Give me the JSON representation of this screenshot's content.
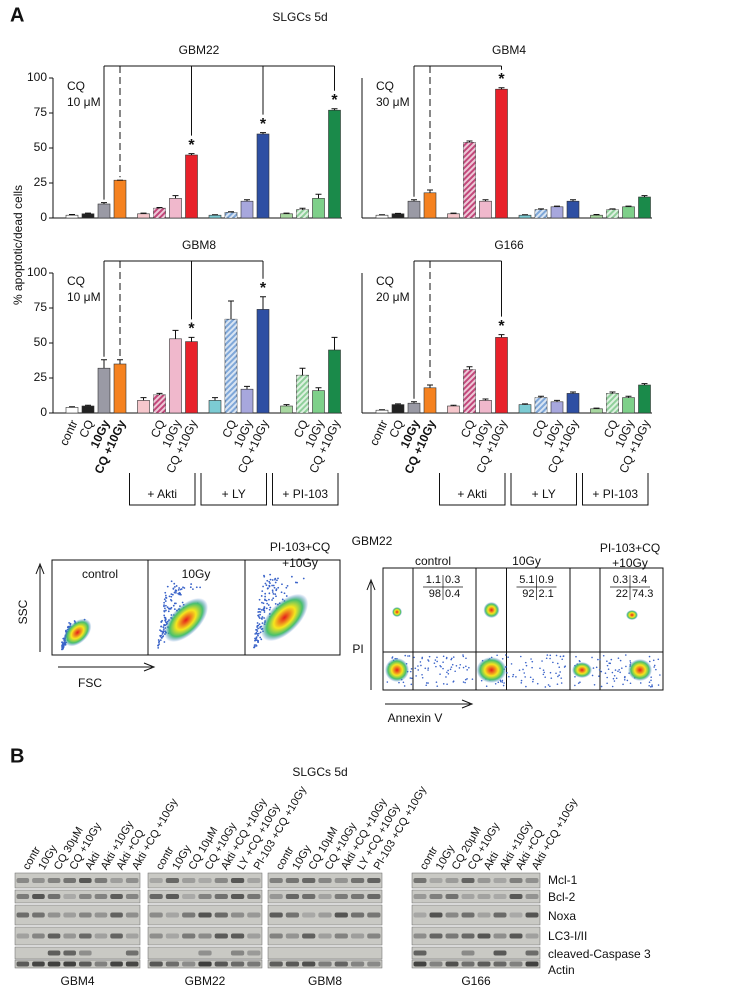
{
  "panel_a": {
    "label": "A",
    "title": "SLGCs 5d",
    "y_label": "% apoptotic/dead cells"
  },
  "chart_data": [
    {
      "type": "bar",
      "title": "GBM22",
      "note": [
        "CQ",
        "10 μM"
      ],
      "ylim": [
        0,
        100
      ],
      "yticks": [
        0,
        25,
        50,
        75,
        100
      ],
      "values": [
        2,
        3,
        10,
        27,
        3,
        7,
        14,
        45,
        2,
        4,
        12,
        60,
        3,
        6,
        14,
        77
      ],
      "errors": [
        0.5,
        0.5,
        1,
        0,
        0.5,
        0.5,
        2,
        1,
        0.3,
        0.5,
        1,
        1,
        0.5,
        1,
        3,
        1
      ],
      "colors": [
        "#ffffff",
        "#222222",
        "#9a9aa5",
        "#f58220",
        "#f6c7cc",
        "#c2477a",
        "#f0b8cc",
        "#e8212a",
        "#7ccbd3",
        "#7fa7d8",
        "#a7a7dd",
        "#2e4fa3",
        "#a8d8a0",
        "#8fcf9a",
        "#7ed08a",
        "#1a8a4a"
      ],
      "annotations": [
        null,
        null,
        null,
        null,
        null,
        null,
        null,
        "*",
        null,
        null,
        null,
        "*",
        null,
        null,
        null,
        "*"
      ]
    },
    {
      "type": "bar",
      "title": "GBM4",
      "note": [
        "CQ",
        "30 μM"
      ],
      "ylim": [
        0,
        100
      ],
      "values": [
        2,
        3,
        12,
        18,
        3,
        54,
        12,
        92,
        2,
        6,
        8,
        12,
        2,
        6,
        8,
        15
      ],
      "errors": [
        0.3,
        0.3,
        1,
        2,
        0.5,
        1,
        1,
        1,
        0.3,
        0.5,
        0.5,
        1,
        0.5,
        0.5,
        0.5,
        1
      ],
      "colors": [
        "#ffffff",
        "#222222",
        "#9a9aa5",
        "#f58220",
        "#f6c7cc",
        "#c2477a",
        "#f0b8cc",
        "#e8212a",
        "#7ccbd3",
        "#7fa7d8",
        "#a7a7dd",
        "#2e4fa3",
        "#a8d8a0",
        "#8fcf9a",
        "#7ed08a",
        "#1a8a4a"
      ],
      "annotations": [
        null,
        null,
        null,
        null,
        null,
        null,
        null,
        "*",
        null,
        null,
        null,
        null,
        null,
        null,
        null,
        null
      ]
    },
    {
      "type": "bar",
      "title": "GBM8",
      "note": [
        "CQ",
        "10 μM"
      ],
      "ylim": [
        0,
        100
      ],
      "yticks": [
        0,
        25,
        50,
        75,
        100
      ],
      "values": [
        4,
        5,
        32,
        35,
        9,
        13,
        53,
        51,
        9,
        67,
        17,
        74,
        5,
        27,
        16,
        45
      ],
      "errors": [
        0.5,
        0.5,
        6,
        3,
        2,
        1,
        6,
        3,
        2,
        13,
        2,
        9,
        1,
        5,
        2,
        9
      ],
      "colors": [
        "#ffffff",
        "#222222",
        "#9a9aa5",
        "#f58220",
        "#f6c7cc",
        "#c2477a",
        "#f0b8cc",
        "#e8212a",
        "#7ccbd3",
        "#7fa7d8",
        "#a7a7dd",
        "#2e4fa3",
        "#a8d8a0",
        "#8fcf9a",
        "#7ed08a",
        "#1a8a4a"
      ],
      "annotations": [
        null,
        null,
        null,
        null,
        null,
        null,
        null,
        "*",
        null,
        null,
        null,
        "*",
        null,
        null,
        null,
        null
      ],
      "categories": [
        "contr",
        "CQ",
        "10Gy",
        "CQ +10Gy",
        null,
        "CQ",
        "10Gy",
        "CQ +10Gy",
        null,
        "CQ",
        "10Gy",
        "CQ +10Gy",
        null,
        "CQ",
        "10Gy",
        "CQ +10Gy"
      ],
      "groups": [
        "+ Akti",
        "+ LY",
        "+ PI-103"
      ]
    },
    {
      "type": "bar",
      "title": "G166",
      "note": [
        "CQ",
        "20 μM"
      ],
      "ylim": [
        0,
        100
      ],
      "values": [
        2,
        6,
        7,
        18,
        5,
        31,
        9,
        54,
        6,
        11,
        8,
        14,
        3,
        14,
        11,
        20
      ],
      "errors": [
        0.3,
        0.5,
        1,
        2,
        0.5,
        2,
        1,
        2,
        0.5,
        1,
        1,
        1,
        0.5,
        1,
        1,
        1
      ],
      "colors": [
        "#ffffff",
        "#222222",
        "#9a9aa5",
        "#f58220",
        "#f6c7cc",
        "#c2477a",
        "#f0b8cc",
        "#e8212a",
        "#7ccbd3",
        "#7fa7d8",
        "#a7a7dd",
        "#2e4fa3",
        "#a8d8a0",
        "#8fcf9a",
        "#7ed08a",
        "#1a8a4a"
      ],
      "annotations": [
        null,
        null,
        null,
        null,
        null,
        null,
        null,
        "*",
        null,
        null,
        null,
        null,
        null,
        null,
        null,
        null
      ],
      "categories": [
        "contr",
        "CQ",
        "10Gy",
        "CQ +10Gy",
        null,
        "CQ",
        "10Gy",
        "CQ +10Gy",
        null,
        "CQ",
        "10Gy",
        "CQ +10Gy",
        null,
        "CQ",
        "10Gy",
        "CQ +10Gy"
      ],
      "groups": [
        "+ Akti",
        "+ LY",
        "+ PI-103"
      ]
    }
  ],
  "flow": {
    "title": "GBM22",
    "scatter": {
      "y_label": "SSC",
      "x_label": "FSC",
      "panels": [
        [
          "control"
        ],
        [
          "10Gy"
        ],
        [
          "PI-103+CQ",
          "+10Gy"
        ]
      ]
    },
    "annexin": {
      "y_label": "PI",
      "x_label": "Annexin V",
      "panels": [
        {
          "label": [
            "control"
          ],
          "quadrants": [
            "1.1",
            "0.3",
            "98",
            "0.4"
          ]
        },
        {
          "label": [
            "10Gy"
          ],
          "quadrants": [
            "5.1",
            "0.9",
            "92",
            "2.1"
          ]
        },
        {
          "label": [
            "PI-103+CQ",
            "+10Gy"
          ],
          "quadrants": [
            "0.3",
            "3.4",
            "22",
            "74.3"
          ]
        }
      ]
    }
  },
  "western": {
    "label": "B",
    "title": "SLGCs 5d",
    "blots": [
      {
        "name": "GBM4",
        "lanes": [
          "contr",
          "10Gy",
          "CQ 30μM",
          "CQ +10Gy",
          "Akti",
          "Akti +10Gy",
          "Akti +CQ",
          "Akti +CQ +10Gy"
        ]
      },
      {
        "name": "GBM22",
        "lanes": [
          "contr",
          "10Gy",
          "CQ 10μM",
          "CQ +10Gy",
          "Akti +CQ +10Gy",
          "LY +CQ +10Gy",
          "PI-103 +CQ +10Gy"
        ]
      },
      {
        "name": "GBM8",
        "lanes": [
          "contr",
          "10Gy",
          "CQ 10μM",
          "CQ +10Gy",
          "Akti +CQ +10Gy",
          "LY +CQ +10Gy",
          "PI-103 +CQ +10Gy"
        ]
      },
      {
        "name": "G166",
        "lanes": [
          "contr",
          "10Gy",
          "CQ 20μM",
          "CQ +10Gy",
          "Akti",
          "Akti +10Gy",
          "Akti +CQ",
          "Akti +CQ +10Gy"
        ]
      }
    ],
    "proteins": [
      "Mcl-1",
      "Bcl-2",
      "Noxa",
      "LC3-I/II",
      "cleaved-Caspase 3",
      "Actin"
    ]
  }
}
